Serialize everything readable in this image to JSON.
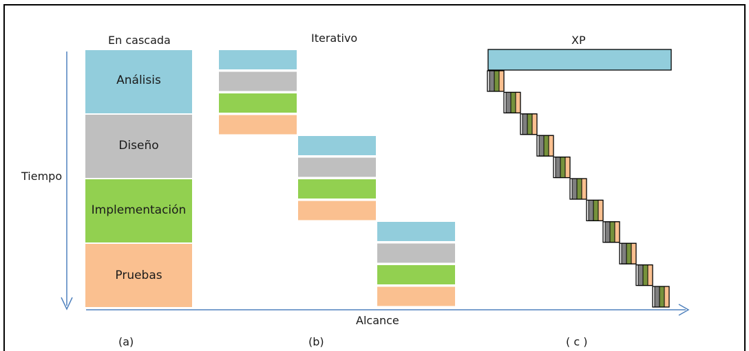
{
  "columns": {
    "waterfall": {
      "title": "En cascada",
      "caption": "(a)"
    },
    "iterative": {
      "title": "Iterativo",
      "caption": "(b)"
    },
    "xp": {
      "title": "XP",
      "caption": "( c )"
    }
  },
  "phases": [
    {
      "key": "analysis",
      "label": "Análisis",
      "color": "#92CDDC"
    },
    {
      "key": "design",
      "label": "Diseño",
      "color": "#BFBFBF"
    },
    {
      "key": "implementation",
      "label": "Implementación",
      "color": "#92D050"
    },
    {
      "key": "testing",
      "label": "Pruebas",
      "color": "#FAC090"
    }
  ],
  "axes": {
    "y_label": "Tiempo",
    "x_label": "Alcance",
    "arrow_color": "#4F81BD"
  },
  "xp_mini_colors": [
    "#7F7F7F",
    "#76923C",
    "#FAC090"
  ],
  "iterative_cycles": 3,
  "xp_iterations": 11
}
